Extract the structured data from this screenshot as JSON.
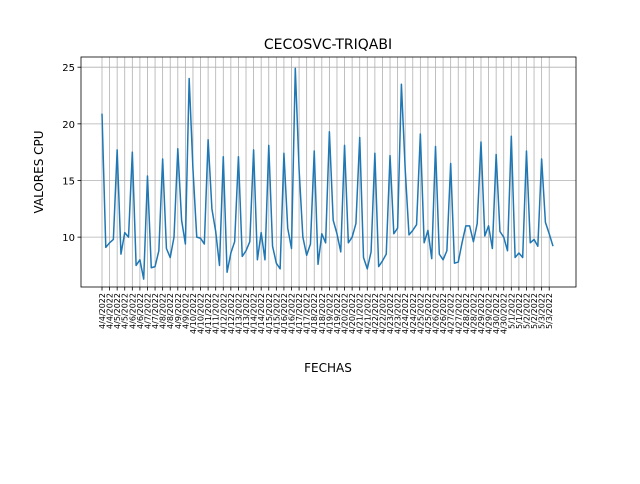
{
  "chart_data": {
    "type": "line",
    "title": "CECOSVC-TRIQABI",
    "x_label": "FECHAS",
    "y_label": "VALORES CPU",
    "categories": [
      "4/4/2022",
      null,
      "4/4/2022",
      null,
      "4/5/2022",
      null,
      "4/5/2022",
      null,
      "4/6/2022",
      null,
      "4/6/2022",
      null,
      "4/7/2022",
      null,
      "4/7/2022",
      null,
      "4/8/2022",
      null,
      "4/8/2022",
      null,
      "4/9/2022",
      null,
      "4/9/2022",
      null,
      "4/10/2022",
      null,
      "4/10/2022",
      null,
      "4/11/2022",
      null,
      "4/11/2022",
      null,
      "4/12/2022",
      null,
      "4/12/2022",
      null,
      "4/13/2022",
      null,
      "4/13/2022",
      null,
      "4/14/2022",
      null,
      "4/14/2022",
      null,
      "4/15/2022",
      null,
      "4/15/2022",
      null,
      "4/16/2022",
      null,
      "4/16/2022",
      null,
      "4/17/2022",
      null,
      "4/17/2022",
      null,
      "4/18/2022",
      null,
      "4/18/2022",
      null,
      "4/19/2022",
      null,
      "4/19/2022",
      null,
      "4/20/2022",
      null,
      "4/20/2022",
      null,
      "4/21/2022",
      null,
      "4/21/2022",
      null,
      "4/22/2022",
      null,
      "4/22/2022",
      null,
      "4/23/2022",
      null,
      "4/23/2022",
      null,
      "4/24/2022",
      null,
      "4/24/2022",
      null,
      "4/25/2022",
      null,
      "4/25/2022",
      null,
      "4/26/2022",
      null,
      "4/26/2022",
      null,
      "4/27/2022",
      null,
      "4/27/2022",
      null,
      "4/28/2022",
      null,
      "4/28/2022",
      null,
      "4/29/2022",
      null,
      "4/29/2022",
      null,
      "4/30/2022",
      null,
      "4/30/2022",
      null,
      "5/1/2022",
      null,
      "5/1/2022",
      null,
      "5/2/2022",
      null,
      "5/2/2022",
      null,
      "5/3/2022",
      null,
      "5/3/2022",
      null
    ],
    "series": [
      {
        "color": "#1f77b4",
        "values": [
          20.9,
          9.1,
          9.5,
          9.8,
          17.7,
          8.5,
          10.4,
          10,
          17.5,
          7.5,
          8,
          6.3,
          15.4,
          7.3,
          7.4,
          8.8,
          16.9,
          9,
          8.2,
          10,
          17.8,
          11.5,
          9.4,
          24,
          16,
          10,
          9.9,
          9.4,
          18.6,
          12.5,
          10.5,
          7.5,
          17.1,
          6.9,
          8.6,
          9.6,
          17.1,
          8.3,
          8.8,
          9.6,
          17.7,
          8,
          10.4,
          8,
          18.1,
          9.2,
          7.7,
          7.2,
          17.4,
          10.8,
          9,
          24.9,
          16,
          10,
          8.4,
          9.4,
          17.6,
          7.6,
          10.3,
          9.5,
          19.3,
          11.5,
          10.3,
          8.7,
          18.1,
          9.5,
          10,
          11.2,
          18.8,
          8.2,
          7.2,
          8.7,
          17.4,
          7.4,
          7.9,
          8.5,
          17.2,
          10.3,
          10.8,
          23.5,
          16,
          10.2,
          10.6,
          11.1,
          19.1,
          9.5,
          10.6,
          8.1,
          18,
          8.5,
          8,
          8.8,
          16.5,
          7.7,
          7.8,
          9.5,
          11,
          11,
          9.6,
          11.2,
          18.4,
          10.1,
          11,
          9,
          17.3,
          10.5,
          10,
          8.8,
          18.9,
          8.2,
          8.6,
          8.2,
          17.6,
          9.5,
          9.8,
          9.2,
          16.9,
          11.3,
          10.3,
          9.2
        ]
      }
    ],
    "ylim": [
      5.6,
      25.9
    ],
    "yticks": [
      10,
      15,
      20,
      25
    ],
    "grid": true
  }
}
